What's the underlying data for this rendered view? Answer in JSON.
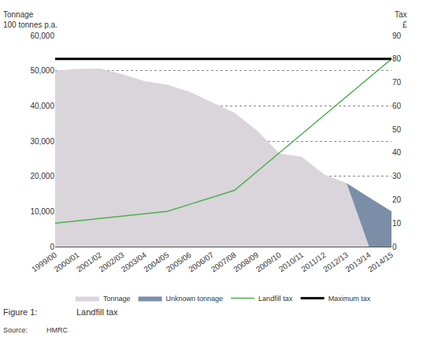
{
  "chart_data": {
    "type": "area",
    "categories": [
      "1999/00",
      "2000/01",
      "2001/02",
      "2002/03",
      "2003/04",
      "2004/05",
      "2005/06",
      "2006/07",
      "2007/08",
      "2008/09",
      "2009/10",
      "2010/11",
      "2011/12",
      "2012/13",
      "2013/14",
      "2014/15"
    ],
    "series": [
      {
        "name": "Tonnage",
        "type": "area",
        "color": "#d9d5da",
        "values": [
          50000,
          50500,
          50600,
          49000,
          47000,
          46000,
          44000,
          41000,
          38000,
          33000,
          26500,
          25500,
          20500,
          18000,
          0,
          0
        ]
      },
      {
        "name": "Unknown tonnage",
        "type": "area",
        "color": "#7b8ea8",
        "values": [
          null,
          null,
          null,
          null,
          null,
          null,
          null,
          null,
          null,
          null,
          null,
          null,
          null,
          0,
          14000,
          10000
        ]
      },
      {
        "name": "Landfill tax",
        "type": "line",
        "axis": "y2",
        "color": "#4caf50",
        "values": [
          10,
          11,
          12,
          13,
          14,
          15,
          18,
          21,
          24,
          32,
          40,
          48,
          56,
          64,
          72,
          80
        ]
      },
      {
        "name": "Maximum tax",
        "type": "line",
        "axis": "y2",
        "color": "#000000",
        "values": [
          80,
          80,
          80,
          80,
          80,
          80,
          80,
          80,
          80,
          80,
          80,
          80,
          80,
          80,
          80,
          80
        ]
      }
    ],
    "y_label": [
      "Tonnage",
      "100 tonnes p.a."
    ],
    "y2_label": [
      "Tax",
      "£"
    ],
    "ylim": [
      0,
      60000
    ],
    "yticks": [
      0,
      {
        "value": 10000,
        "label": "10,000"
      },
      {
        "value": 20000,
        "label": "20,000"
      },
      {
        "value": 30000,
        "label": "30,000"
      },
      {
        "value": 40000,
        "label": "40,000"
      },
      {
        "value": 50000,
        "label": "50,000"
      },
      {
        "value": 60000,
        "label": "60,000"
      }
    ],
    "y2lim": [
      0,
      90
    ],
    "y2ticks": [
      0,
      10,
      20,
      30,
      40,
      50,
      60,
      70,
      80,
      90
    ],
    "grid": true,
    "stacked": true,
    "legend": "bottom",
    "caption": {
      "label": "Figure 1:",
      "text": "Landfill tax"
    },
    "source": {
      "label": "Source:",
      "text": "HMRC"
    }
  }
}
